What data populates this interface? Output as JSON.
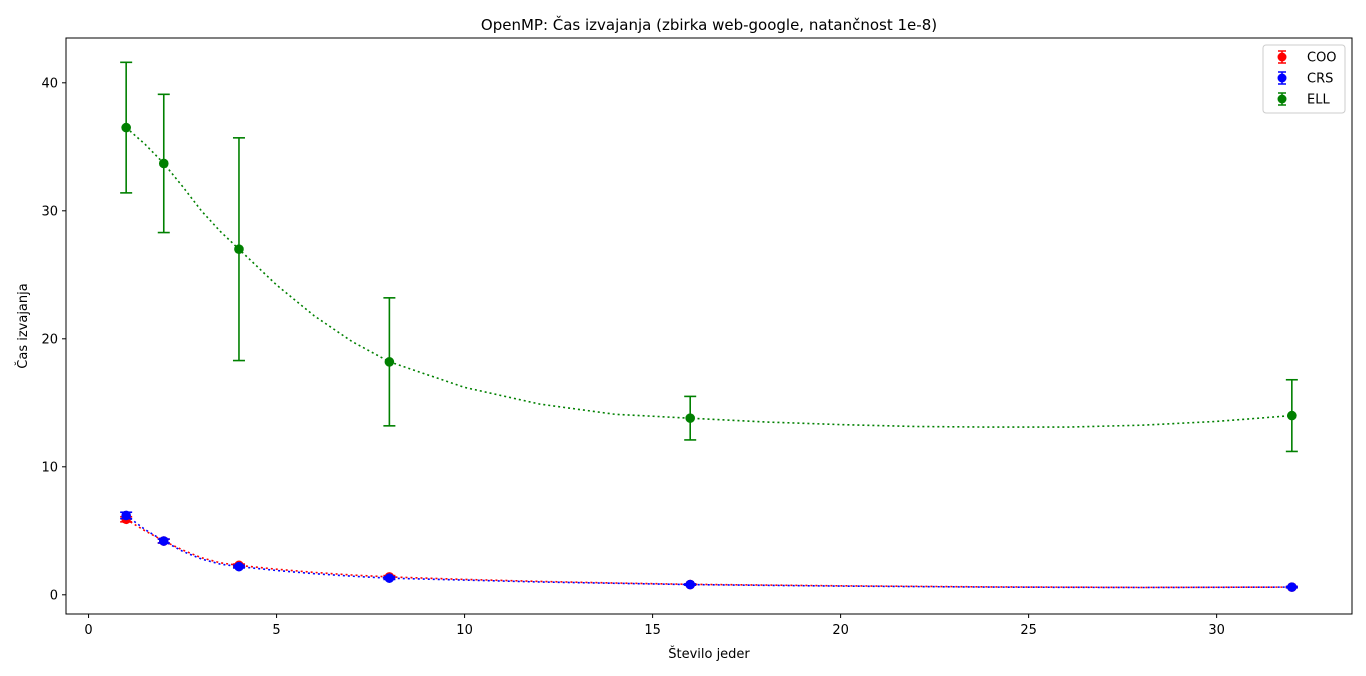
{
  "chart_data": {
    "type": "scatter",
    "title": "OpenMP: Čas izvajanja (zbirka web-google, natančnost 1e-8)",
    "xlabel": "Število jeder",
    "ylabel": "Čas izvajanja",
    "xlim": [
      -0.6,
      33.6
    ],
    "ylim": [
      -1.5,
      43.5
    ],
    "xticks": [
      0,
      5,
      10,
      15,
      20,
      25,
      30
    ],
    "yticks": [
      0,
      10,
      20,
      30,
      40
    ],
    "legend_position": "top-right",
    "grid": false,
    "series": [
      {
        "name": "COO",
        "color": "#ff0000",
        "x": [
          1,
          2,
          4,
          8,
          16,
          32
        ],
        "y": [
          5.9,
          4.2,
          2.3,
          1.4,
          0.8,
          0.6
        ],
        "err": [
          0.2,
          0.15,
          0.1,
          0.1,
          0.05,
          0.05
        ],
        "fit_curve": [
          [
            1,
            5.9
          ],
          [
            1.5,
            5.0
          ],
          [
            2,
            4.2
          ],
          [
            2.5,
            3.5
          ],
          [
            3,
            2.9
          ],
          [
            3.5,
            2.5
          ],
          [
            4,
            2.3
          ],
          [
            5,
            2.0
          ],
          [
            6,
            1.75
          ],
          [
            7,
            1.55
          ],
          [
            8,
            1.4
          ],
          [
            10,
            1.2
          ],
          [
            12,
            1.05
          ],
          [
            14,
            0.92
          ],
          [
            16,
            0.82
          ],
          [
            20,
            0.7
          ],
          [
            24,
            0.62
          ],
          [
            28,
            0.58
          ],
          [
            32,
            0.6
          ]
        ]
      },
      {
        "name": "CRS",
        "color": "#0000ff",
        "x": [
          1,
          2,
          4,
          8,
          16,
          32
        ],
        "y": [
          6.2,
          4.2,
          2.2,
          1.3,
          0.8,
          0.6
        ],
        "err": [
          0.25,
          0.15,
          0.1,
          0.1,
          0.05,
          0.05
        ],
        "fit_curve": [
          [
            1,
            6.2
          ],
          [
            1.5,
            5.1
          ],
          [
            2,
            4.2
          ],
          [
            2.5,
            3.4
          ],
          [
            3,
            2.8
          ],
          [
            3.5,
            2.4
          ],
          [
            4,
            2.2
          ],
          [
            5,
            1.9
          ],
          [
            6,
            1.65
          ],
          [
            7,
            1.45
          ],
          [
            8,
            1.3
          ],
          [
            10,
            1.15
          ],
          [
            12,
            1.0
          ],
          [
            14,
            0.9
          ],
          [
            16,
            0.8
          ],
          [
            20,
            0.68
          ],
          [
            24,
            0.6
          ],
          [
            28,
            0.57
          ],
          [
            32,
            0.6
          ]
        ]
      },
      {
        "name": "ELL",
        "color": "#008000",
        "x": [
          1,
          2,
          4,
          8,
          16,
          32
        ],
        "y": [
          36.5,
          33.7,
          27.0,
          18.2,
          13.8,
          14.0
        ],
        "err": [
          5.1,
          5.4,
          8.7,
          5.0,
          1.7,
          2.8
        ],
        "fit_curve": [
          [
            1,
            36.5
          ],
          [
            1.5,
            35.2
          ],
          [
            2,
            33.7
          ],
          [
            2.5,
            31.9
          ],
          [
            3,
            30.0
          ],
          [
            3.5,
            28.4
          ],
          [
            4,
            27.0
          ],
          [
            5,
            24.2
          ],
          [
            6,
            21.8
          ],
          [
            7,
            19.8
          ],
          [
            8,
            18.2
          ],
          [
            10,
            16.2
          ],
          [
            12,
            14.9
          ],
          [
            14,
            14.1
          ],
          [
            16,
            13.8
          ],
          [
            18,
            13.5
          ],
          [
            20,
            13.3
          ],
          [
            22,
            13.15
          ],
          [
            24,
            13.1
          ],
          [
            26,
            13.1
          ],
          [
            28,
            13.25
          ],
          [
            30,
            13.55
          ],
          [
            32,
            14.0
          ]
        ]
      }
    ]
  }
}
